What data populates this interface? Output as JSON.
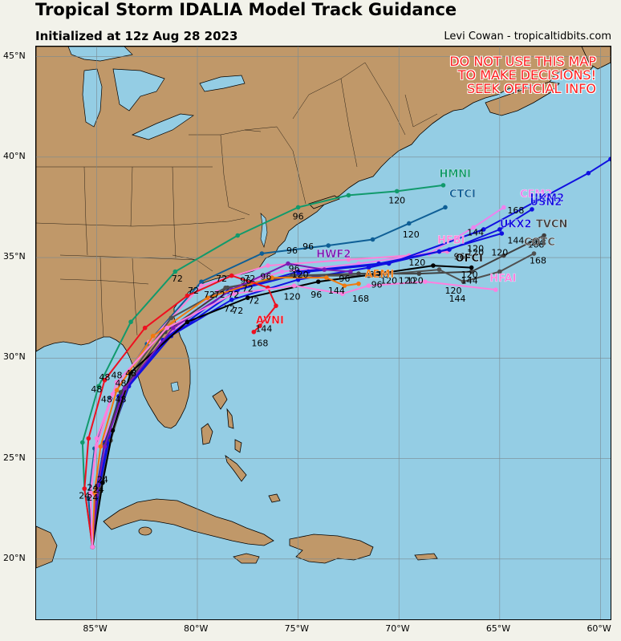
{
  "title": "Tropical Storm IDALIA Model Track Guidance",
  "subtitle": "Initialized at 12z Aug 28 2023",
  "credit": "Levi Cowan - tropicaltidbits.com",
  "warning": [
    "DO NOT USE THIS MAP",
    "TO MAKE DECISIONS!",
    "SEEK OFFICIAL INFO"
  ],
  "colors": {
    "ocean": "#94cde4",
    "land": "#c09869",
    "lake": "#94cde4",
    "grid": "#7a8a90",
    "warning": "#ff2020"
  },
  "chart_data": {
    "type": "map-tracks",
    "lon_range": [
      -88,
      -59.5
    ],
    "lat_range": [
      17,
      45.5
    ],
    "lon_ticks": [
      {
        "value": -85,
        "label": "85°W"
      },
      {
        "value": -80,
        "label": "80°W"
      },
      {
        "value": -75,
        "label": "75°W"
      },
      {
        "value": -70,
        "label": "70°W"
      },
      {
        "value": -65,
        "label": "65°W"
      },
      {
        "value": -60,
        "label": "60°W"
      }
    ],
    "lat_ticks": [
      {
        "value": 20,
        "label": "20°N"
      },
      {
        "value": 25,
        "label": "25°N"
      },
      {
        "value": 30,
        "label": "30°N"
      },
      {
        "value": 35,
        "label": "35°N"
      },
      {
        "value": 40,
        "label": "40°N"
      },
      {
        "value": 45,
        "label": "45°N"
      }
    ],
    "grid": true,
    "tracks": [
      {
        "name": "HMNI",
        "color": "#119a6c",
        "points": [
          [
            -85.2,
            20.6
          ],
          [
            -85.6,
            23.5
          ],
          [
            -85.7,
            25.8
          ],
          [
            -84.9,
            28.6
          ],
          [
            -83.3,
            31.8
          ],
          [
            -81.1,
            34.3
          ],
          [
            -78.0,
            36.1
          ],
          [
            -75.0,
            37.5
          ],
          [
            -72.5,
            38.1
          ],
          [
            -70.1,
            38.3
          ],
          [
            -67.8,
            38.6
          ]
        ],
        "label": {
          "lon": -68.0,
          "lat": 39.0
        }
      },
      {
        "name": "CTCI",
        "color": "#0f5f96",
        "points": [
          [
            -85.2,
            20.6
          ],
          [
            -85.4,
            23.0
          ],
          [
            -85.1,
            25.5
          ],
          [
            -84.3,
            28.0
          ],
          [
            -82.5,
            30.7
          ],
          [
            -79.8,
            33.8
          ],
          [
            -76.8,
            35.2
          ],
          [
            -73.5,
            35.6
          ],
          [
            -71.3,
            35.9
          ],
          [
            -69.5,
            36.7
          ],
          [
            -67.7,
            37.5
          ]
        ],
        "label": {
          "lon": -67.5,
          "lat": 38.0
        }
      },
      {
        "name": "HFBI",
        "color": "#ff80d8",
        "points": [
          [
            -85.2,
            20.6
          ],
          [
            -85.3,
            23.2
          ],
          [
            -85.0,
            25.6
          ],
          [
            -84.2,
            28.2
          ],
          [
            -82.4,
            30.8
          ],
          [
            -79.8,
            33.6
          ],
          [
            -76.5,
            34.6
          ],
          [
            -72.5,
            34.9
          ],
          [
            -69.5,
            35.1
          ],
          [
            -67.6,
            35.3
          ]
        ],
        "label": {
          "lon": -68.1,
          "lat": 35.7
        }
      },
      {
        "name": "CEM2",
        "color": "#ee82ee",
        "points": [
          [
            -85.2,
            20.6
          ],
          [
            -85.1,
            23.2
          ],
          [
            -84.8,
            25.6
          ],
          [
            -83.8,
            28.0
          ],
          [
            -81.8,
            30.8
          ],
          [
            -79.0,
            33.3
          ],
          [
            -75.8,
            34.3
          ],
          [
            -72.0,
            34.7
          ],
          [
            -68.5,
            35.2
          ],
          [
            -66.3,
            36.5
          ],
          [
            -64.8,
            37.5
          ]
        ],
        "label": {
          "lon": -64.0,
          "lat": 38.0
        }
      },
      {
        "name": "UKM2",
        "color": "#1010e0",
        "points": [
          [
            -85.2,
            20.6
          ],
          [
            -85.0,
            23.5
          ],
          [
            -84.6,
            25.8
          ],
          [
            -83.7,
            28.3
          ],
          [
            -81.7,
            30.9
          ],
          [
            -78.5,
            33.3
          ],
          [
            -75.0,
            34.3
          ],
          [
            -71.0,
            34.7
          ],
          [
            -67.5,
            35.4
          ],
          [
            -65.0,
            36.4
          ],
          [
            -63.4,
            37.4
          ]
        ],
        "label": {
          "lon": -63.5,
          "lat": 37.8
        }
      },
      {
        "name": "UKX2",
        "color": "#1010e0",
        "points": [
          [
            -85.2,
            20.6
          ],
          [
            -85.0,
            23.0
          ],
          [
            -84.5,
            25.6
          ],
          [
            -83.9,
            28.1
          ],
          [
            -81.5,
            31.0
          ],
          [
            -78.3,
            32.9
          ],
          [
            -75.0,
            33.9
          ],
          [
            -71.5,
            34.5
          ],
          [
            -68.0,
            35.3
          ],
          [
            -64.9,
            36.2
          ]
        ],
        "label": {
          "lon": -65.0,
          "lat": 36.5
        }
      },
      {
        "name": "USN2",
        "color": "#1010e0",
        "points": [
          [
            -85.2,
            20.6
          ],
          [
            -84.9,
            23.4
          ],
          [
            -84.4,
            25.8
          ],
          [
            -83.4,
            28.6
          ],
          [
            -81.3,
            31.1
          ],
          [
            -78.0,
            33.4
          ],
          [
            -74.5,
            34.3
          ],
          [
            -70.5,
            34.7
          ],
          [
            -65.8,
            36.4
          ],
          [
            -60.6,
            39.2
          ],
          [
            -59.5,
            39.9
          ]
        ],
        "label": {
          "lon": -63.5,
          "lat": 37.6
        }
      },
      {
        "name": "TVCN",
        "color": "#404040",
        "points": [
          [
            -85.2,
            20.6
          ],
          [
            -85.0,
            23.3
          ],
          [
            -84.6,
            25.7
          ],
          [
            -83.8,
            28.3
          ],
          [
            -81.6,
            31.3
          ],
          [
            -78.5,
            33.5
          ],
          [
            -75.3,
            34.1
          ],
          [
            -72.0,
            34.2
          ],
          [
            -69.0,
            34.2
          ],
          [
            -66.4,
            34.3
          ],
          [
            -64.8,
            35.1
          ],
          [
            -62.8,
            36.1
          ]
        ],
        "label": {
          "lon": -63.2,
          "lat": 36.5
        }
      },
      {
        "name": "COTC",
        "color": "#505050",
        "points": [
          [
            -85.2,
            20.6
          ],
          [
            -84.8,
            23.5
          ],
          [
            -84.3,
            25.9
          ],
          [
            -83.3,
            29.2
          ],
          [
            -81.3,
            32.0
          ],
          [
            -78.6,
            33.5
          ],
          [
            -75.2,
            34.1
          ],
          [
            -71.5,
            34.1
          ],
          [
            -68.0,
            34.4
          ],
          [
            -66.8,
            33.8
          ],
          [
            -65.0,
            34.3
          ],
          [
            -63.3,
            35.2
          ]
        ],
        "label": {
          "lon": -63.8,
          "lat": 35.6
        }
      },
      {
        "name": "OFCI",
        "color": "#000000",
        "points": [
          [
            -85.2,
            20.6
          ],
          [
            -84.7,
            23.8
          ],
          [
            -84.2,
            26.4
          ],
          [
            -83.3,
            29.3
          ],
          [
            -80.5,
            31.8
          ],
          [
            -77.5,
            33.0
          ],
          [
            -74.0,
            33.8
          ],
          [
            -71.0,
            34.2
          ],
          [
            -68.3,
            34.6
          ],
          [
            -66.4,
            34.5
          ]
        ],
        "label": {
          "lon": -67.2,
          "lat": 34.8
        }
      },
      {
        "name": "HWF2",
        "color": "#7a1bb4",
        "points": [
          [
            -85.2,
            20.6
          ],
          [
            -85.0,
            23.2
          ],
          [
            -84.6,
            25.6
          ],
          [
            -83.6,
            28.5
          ],
          [
            -81.2,
            31.5
          ],
          [
            -78.3,
            33.4
          ],
          [
            -75.5,
            34.7
          ],
          [
            -73.7,
            34.4
          ],
          [
            -72.4,
            34.3
          ]
        ],
        "label": {
          "lon": -74.1,
          "lat": 35.0
        }
      },
      {
        "name": "AEMI",
        "color": "#f07a10",
        "points": [
          [
            -85.2,
            20.6
          ],
          [
            -85.1,
            23.3
          ],
          [
            -84.8,
            25.6
          ],
          [
            -84.0,
            28.4
          ],
          [
            -82.2,
            31.1
          ],
          [
            -79.5,
            33.0
          ],
          [
            -76.3,
            34.0
          ],
          [
            -73.6,
            34.0
          ],
          [
            -72.7,
            33.6
          ],
          [
            -72.0,
            33.7
          ]
        ],
        "label": {
          "lon": -71.7,
          "lat": 34.0
        }
      },
      {
        "name": "AVNI",
        "color": "#ee1020",
        "points": [
          [
            -85.2,
            20.6
          ],
          [
            -85.6,
            23.5
          ],
          [
            -85.4,
            26.0
          ],
          [
            -84.6,
            28.9
          ],
          [
            -82.6,
            31.5
          ],
          [
            -80.5,
            33.1
          ],
          [
            -78.3,
            34.1
          ],
          [
            -76.5,
            33.5
          ],
          [
            -76.1,
            32.6
          ],
          [
            -76.9,
            31.6
          ],
          [
            -77.2,
            31.3
          ]
        ],
        "label": {
          "lon": -77.1,
          "lat": 31.7
        }
      },
      {
        "name": "HFAI",
        "color": "#ff7fdf",
        "points": [
          [
            -85.2,
            20.6
          ],
          [
            -85.3,
            23.3
          ],
          [
            -85.0,
            26.0
          ],
          [
            -84.0,
            28.8
          ],
          [
            -81.5,
            31.5
          ],
          [
            -78.2,
            33.2
          ],
          [
            -75.2,
            33.6
          ],
          [
            -72.8,
            33.2
          ],
          [
            -71.5,
            33.6
          ],
          [
            -68.7,
            33.8
          ],
          [
            -65.2,
            33.4
          ]
        ],
        "label": {
          "lon": -65.5,
          "lat": 33.8
        }
      }
    ],
    "point_labels": [
      {
        "text": "24",
        "lon": -85.6,
        "lat": 23.0
      },
      {
        "text": "24",
        "lon": -85.2,
        "lat": 22.9
      },
      {
        "text": "24",
        "lon": -84.9,
        "lat": 23.3
      },
      {
        "text": "24",
        "lon": -84.7,
        "lat": 23.8
      },
      {
        "text": "24",
        "lon": -85.2,
        "lat": 23.4
      },
      {
        "text": "48",
        "lon": -85.0,
        "lat": 28.3
      },
      {
        "text": "48",
        "lon": -84.6,
        "lat": 28.9
      },
      {
        "text": "48",
        "lon": -84.5,
        "lat": 27.8
      },
      {
        "text": "48",
        "lon": -84.0,
        "lat": 29.0
      },
      {
        "text": "48",
        "lon": -83.8,
        "lat": 28.6
      },
      {
        "text": "48",
        "lon": -83.3,
        "lat": 29.1
      },
      {
        "text": "48",
        "lon": -83.8,
        "lat": 27.8
      },
      {
        "text": "72",
        "lon": -81.0,
        "lat": 33.8
      },
      {
        "text": "72",
        "lon": -79.4,
        "lat": 33.0
      },
      {
        "text": "72",
        "lon": -80.2,
        "lat": 33.2
      },
      {
        "text": "72",
        "lon": -78.8,
        "lat": 33.8
      },
      {
        "text": "72",
        "lon": -78.9,
        "lat": 33.0
      },
      {
        "text": "72",
        "lon": -78.2,
        "lat": 33.0
      },
      {
        "text": "72",
        "lon": -77.5,
        "lat": 33.3
      },
      {
        "text": "72",
        "lon": -77.2,
        "lat": 32.7
      },
      {
        "text": "72",
        "lon": -78.4,
        "lat": 32.3
      },
      {
        "text": "72",
        "lon": -78.0,
        "lat": 32.2
      },
      {
        "text": "72",
        "lon": -77.4,
        "lat": 33.8
      },
      {
        "text": "96",
        "lon": -75.0,
        "lat": 36.9
      },
      {
        "text": "96",
        "lon": -74.5,
        "lat": 35.4
      },
      {
        "text": "96",
        "lon": -75.3,
        "lat": 35.2
      },
      {
        "text": "96",
        "lon": -75.2,
        "lat": 34.3
      },
      {
        "text": "96",
        "lon": -76.6,
        "lat": 33.9
      },
      {
        "text": "96",
        "lon": -77.6,
        "lat": 33.7
      },
      {
        "text": "96",
        "lon": -72.7,
        "lat": 33.8
      },
      {
        "text": "96",
        "lon": -71.2,
        "lat": 34.0
      },
      {
        "text": "96",
        "lon": -70.8,
        "lat": 34.0
      },
      {
        "text": "96",
        "lon": -71.1,
        "lat": 33.5
      },
      {
        "text": "96",
        "lon": -74.1,
        "lat": 33.0
      },
      {
        "text": "96",
        "lon": -67.0,
        "lat": 34.9
      },
      {
        "text": "120",
        "lon": -70.1,
        "lat": 37.7
      },
      {
        "text": "120",
        "lon": -69.4,
        "lat": 36.0
      },
      {
        "text": "120",
        "lon": -69.1,
        "lat": 34.6
      },
      {
        "text": "120",
        "lon": -70.5,
        "lat": 33.7
      },
      {
        "text": "120",
        "lon": -69.6,
        "lat": 33.7
      },
      {
        "text": "120",
        "lon": -69.2,
        "lat": 33.7
      },
      {
        "text": "120",
        "lon": -75.3,
        "lat": 32.9
      },
      {
        "text": "120",
        "lon": -74.9,
        "lat": 34.0
      },
      {
        "text": "120",
        "lon": -66.2,
        "lat": 35.3
      },
      {
        "text": "120",
        "lon": -66.2,
        "lat": 35.1
      },
      {
        "text": "120",
        "lon": -65.0,
        "lat": 35.1
      },
      {
        "text": "120",
        "lon": -66.5,
        "lat": 34.0
      },
      {
        "text": "120",
        "lon": -67.3,
        "lat": 33.2
      },
      {
        "text": "144",
        "lon": -66.2,
        "lat": 36.1
      },
      {
        "text": "144",
        "lon": -73.1,
        "lat": 33.2
      },
      {
        "text": "144",
        "lon": -76.7,
        "lat": 31.3
      },
      {
        "text": "144",
        "lon": -66.5,
        "lat": 33.7
      },
      {
        "text": "144",
        "lon": -67.1,
        "lat": 32.8
      },
      {
        "text": "144",
        "lon": -64.2,
        "lat": 35.7
      },
      {
        "text": "168",
        "lon": -64.2,
        "lat": 37.2
      },
      {
        "text": "168",
        "lon": -63.1,
        "lat": 35.6
      },
      {
        "text": "168",
        "lon": -63.1,
        "lat": 34.7
      },
      {
        "text": "168",
        "lon": -71.9,
        "lat": 32.8
      },
      {
        "text": "168",
        "lon": -76.9,
        "lat": 30.6
      },
      {
        "text": "168",
        "lon": -63.2,
        "lat": 35.5
      }
    ]
  }
}
